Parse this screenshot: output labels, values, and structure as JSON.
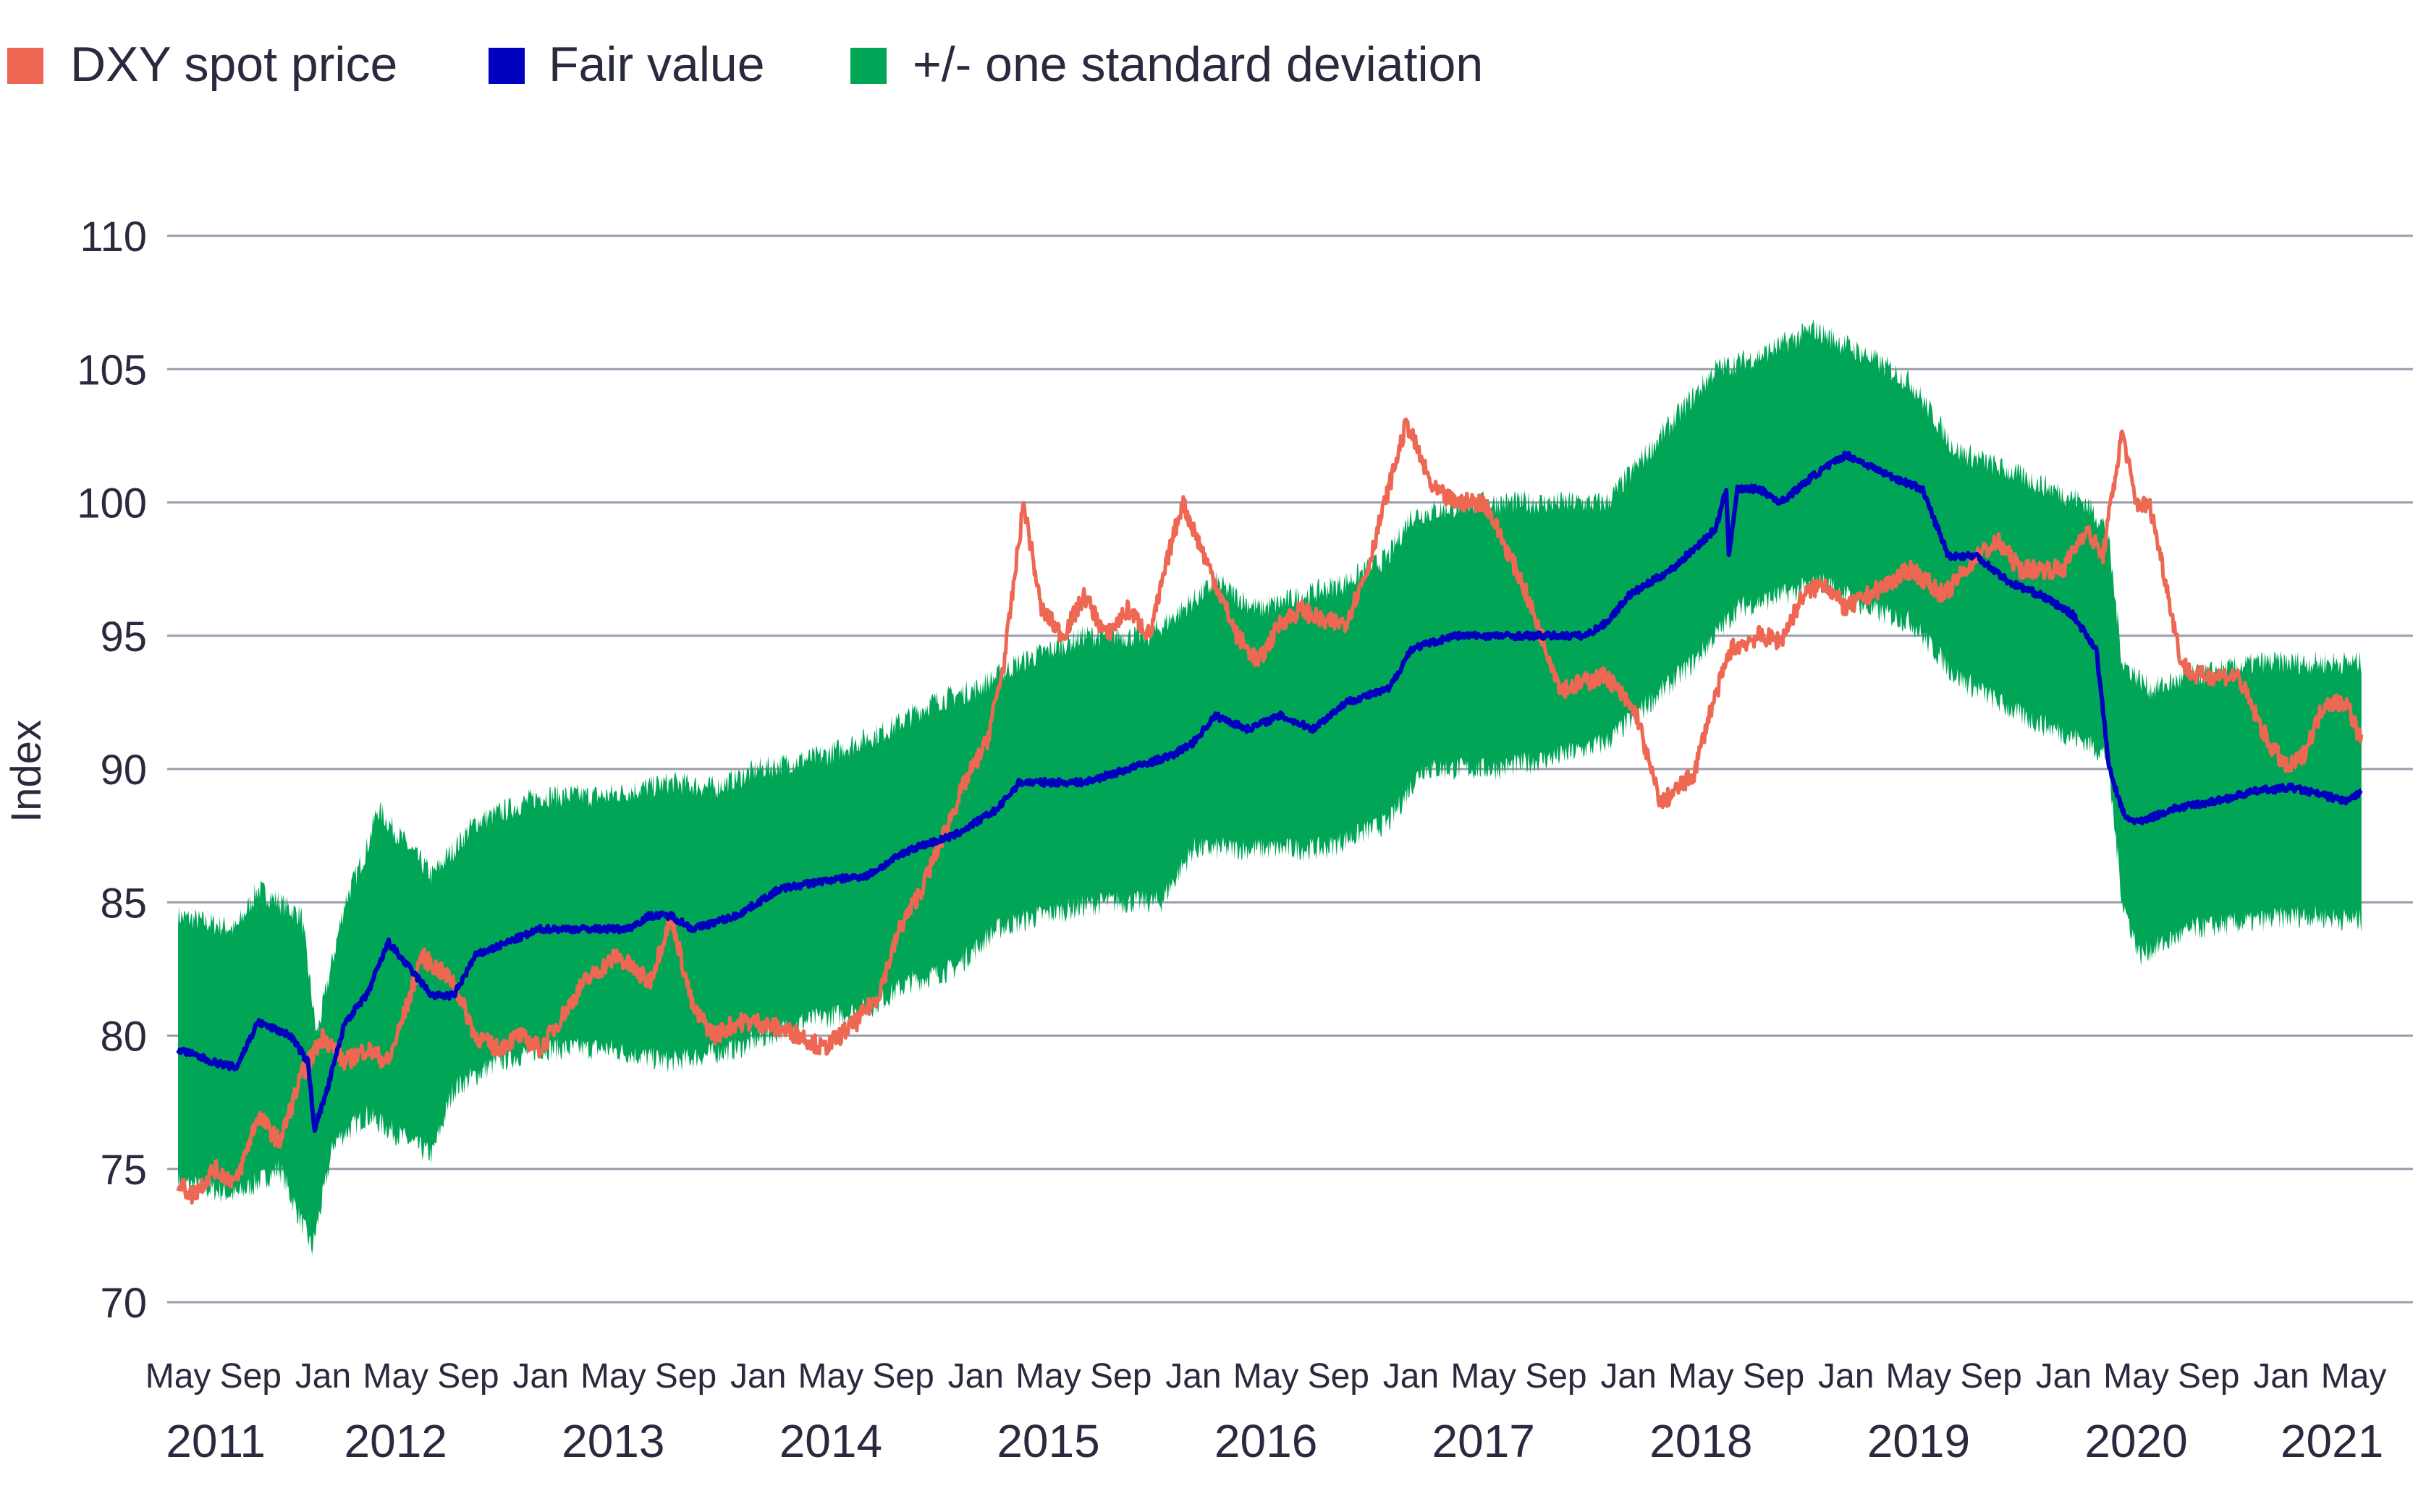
{
  "chart_data": {
    "type": "line",
    "title": "",
    "xlabel": "",
    "ylabel": "Index",
    "ylim": [
      70,
      110
    ],
    "yticks": [
      "70",
      "75",
      "80",
      "85",
      "90",
      "95",
      "100",
      "105",
      "110"
    ],
    "ytick_values": [
      70,
      75,
      80,
      85,
      90,
      95,
      100,
      105,
      110
    ],
    "xlim": [
      2011.33,
      2021.5
    ],
    "grid": "horizontal",
    "legend_position": "top-left",
    "x_month_labels": [
      "May",
      "Sep",
      "Jan",
      "May",
      "Sep",
      "Jan",
      "May",
      "Sep",
      "Jan",
      "May",
      "Sep",
      "Jan",
      "May",
      "Sep",
      "Jan",
      "May",
      "Sep",
      "Jan",
      "May",
      "Sep",
      "Jan",
      "May",
      "Sep",
      "Jan",
      "May",
      "Sep",
      "Jan",
      "May",
      "Sep",
      "Jan",
      "May"
    ],
    "x_year_labels": [
      "2011",
      "2012",
      "2013",
      "2014",
      "2015",
      "2016",
      "2017",
      "2018",
      "2019",
      "2020",
      "2021"
    ],
    "legend": [
      {
        "label": "DXY spot price",
        "color": "#ee6752"
      },
      {
        "label": "Fair value",
        "color": "#0000bf"
      },
      {
        "label": "+/- one standard deviation",
        "color": "#00a656"
      }
    ],
    "series": [
      {
        "name": "DXY spot price",
        "color": "#ee6752",
        "x": [
          2011.33,
          2011.4,
          2011.5,
          2011.6,
          2011.7,
          2011.8,
          2011.9,
          2012.0,
          2012.1,
          2012.2,
          2012.3,
          2012.4,
          2012.45,
          2012.6,
          2012.7,
          2012.8,
          2012.9,
          2013.0,
          2013.2,
          2013.35,
          2013.5,
          2013.6,
          2013.7,
          2013.8,
          2013.9,
          2014.0,
          2014.2,
          2014.3,
          2014.45,
          2014.55,
          2014.65,
          2014.75,
          2014.85,
          2014.95,
          2015.05,
          2015.13,
          2015.22,
          2015.3,
          2015.4,
          2015.5,
          2015.6,
          2015.7,
          2015.8,
          2015.9,
          2015.95,
          2016.1,
          2016.2,
          2016.3,
          2016.4,
          2016.5,
          2016.6,
          2016.7,
          2016.8,
          2016.88,
          2016.98,
          2017.1,
          2017.2,
          2017.34,
          2017.51,
          2017.69,
          2017.9,
          2018.04,
          2018.1,
          2018.15,
          2018.3,
          2018.37,
          2018.47,
          2018.6,
          2018.7,
          2018.8,
          2018.9,
          2019.0,
          2019.1,
          2019.2,
          2019.3,
          2019.45,
          2019.6,
          2019.7,
          2019.8,
          2019.9,
          2020.0,
          2020.1,
          2020.18,
          2020.27,
          2020.33,
          2020.4,
          2020.47,
          2020.54,
          2020.6,
          2020.8,
          2020.94,
          2021.03,
          2021.1,
          2021.2,
          2021.3,
          2021.37
        ],
        "values": [
          74.5,
          74,
          75,
          74.5,
          77,
          76,
          78.5,
          80,
          79,
          79.5,
          79,
          81.5,
          83,
          82,
          80,
          79.5,
          80,
          79.5,
          82,
          83,
          82,
          84.5,
          81,
          80,
          80.5,
          80.5,
          80,
          79.5,
          80.5,
          81.5,
          84,
          85.5,
          87.5,
          89.5,
          91,
          94,
          100,
          96,
          95,
          96.5,
          95,
          96,
          95,
          98.5,
          100,
          97,
          95,
          94,
          95.5,
          96,
          95.5,
          95.5,
          97.5,
          100,
          103,
          100.5,
          100,
          100,
          97,
          93,
          93.5,
          92,
          90,
          88.7,
          89.8,
          92,
          94.5,
          95,
          94.8,
          96.5,
          97,
          96,
          96.5,
          97,
          97.5,
          96.5,
          98,
          98.5,
          97.5,
          97.5,
          97.5,
          99,
          98,
          102.7,
          100,
          99.8,
          97,
          94,
          93.5,
          93.5,
          91,
          90,
          90.5,
          92.5,
          92.5,
          91
        ]
      },
      {
        "name": "Fair value",
        "color": "#0000bf",
        "x": [
          2011.33,
          2011.5,
          2011.6,
          2011.7,
          2011.85,
          2011.93,
          2011.96,
          2012.02,
          2012.1,
          2012.2,
          2012.3,
          2012.4,
          2012.5,
          2012.6,
          2012.7,
          2012.85,
          2013.0,
          2013.2,
          2013.4,
          2013.5,
          2013.6,
          2013.7,
          2013.9,
          2014.1,
          2014.3,
          2014.5,
          2014.7,
          2014.9,
          2015.0,
          2015.1,
          2015.2,
          2015.5,
          2015.7,
          2015.9,
          2016.0,
          2016.1,
          2016.25,
          2016.4,
          2016.55,
          2016.7,
          2016.9,
          2017.0,
          2017.2,
          2017.4,
          2017.6,
          2017.8,
          2017.9,
          2018.0,
          2018.2,
          2018.4,
          2018.45,
          2018.46,
          2018.5,
          2018.6,
          2018.7,
          2018.85,
          2019.0,
          2019.2,
          2019.35,
          2019.47,
          2019.6,
          2019.75,
          2019.9,
          2020.04,
          2020.15,
          2020.21,
          2020.28,
          2020.35,
          2020.5,
          2020.7,
          2020.9,
          2021.05,
          2021.2,
          2021.3,
          2021.37
        ],
        "values": [
          79.5,
          79,
          78.8,
          80.5,
          80,
          79,
          76.5,
          78,
          80.5,
          81.5,
          83.5,
          82.5,
          81.5,
          81.5,
          83,
          83.5,
          84,
          84,
          84,
          84.5,
          84.5,
          84,
          84.5,
          85.5,
          85.8,
          86,
          87,
          87.5,
          88,
          88.5,
          89.5,
          89.5,
          90,
          90.5,
          91,
          92,
          91.5,
          92,
          91.5,
          92.5,
          93,
          94.5,
          95,
          95,
          95,
          95,
          95.5,
          96.5,
          97.5,
          99,
          100.5,
          98,
          100.5,
          100.5,
          100,
          101,
          101.8,
          101,
          100.5,
          98,
          98,
          97,
          96.5,
          95.8,
          94.5,
          90,
          88.2,
          88,
          88.5,
          88.8,
          89.2,
          89.3,
          89,
          88.8,
          89.1
        ]
      }
    ],
    "band": {
      "name": "+/- one standard deviation",
      "color": "#00a656",
      "upper": {
        "x": [
          2011.33,
          2011.6,
          2011.7,
          2011.9,
          2011.97,
          2012.1,
          2012.2,
          2012.25,
          2012.4,
          2012.5,
          2012.6,
          2012.7,
          2013.0,
          2013.3,
          2013.6,
          2013.8,
          2014.0,
          2014.3,
          2014.6,
          2014.8,
          2015.0,
          2015.2,
          2015.5,
          2015.8,
          2015.95,
          2016.1,
          2016.3,
          2016.5,
          2016.7,
          2016.9,
          2017.0,
          2017.3,
          2017.6,
          2017.9,
          2018.0,
          2018.2,
          2018.4,
          2018.6,
          2018.85,
          2019.1,
          2019.3,
          2019.5,
          2019.8,
          2020.1,
          2020.2,
          2020.27,
          2020.4,
          2020.6,
          2020.9,
          2021.2,
          2021.37
        ],
        "values": [
          84.5,
          84,
          85.5,
          84.5,
          80,
          85,
          87,
          88.5,
          87,
          86,
          87,
          88,
          89,
          89,
          89.5,
          89.3,
          90,
          90.5,
          91.5,
          92.5,
          93,
          94,
          95,
          95,
          96,
          97,
          96,
          96.5,
          97,
          98,
          99.5,
          100,
          100,
          100,
          101,
          103,
          105,
          105.5,
          106.5,
          105.5,
          104.5,
          102,
          101,
          100,
          99,
          94,
          93,
          93.5,
          94,
          94,
          94
        ]
      },
      "lower": {
        "x": [
          2011.33,
          2011.6,
          2011.8,
          2011.95,
          2012.05,
          2012.2,
          2012.4,
          2012.5,
          2012.6,
          2012.8,
          2013.0,
          2013.3,
          2013.6,
          2013.9,
          2014.2,
          2014.5,
          2014.7,
          2014.9,
          2015.1,
          2015.3,
          2015.6,
          2015.85,
          2016.0,
          2016.3,
          2016.6,
          2016.9,
          2017.05,
          2017.4,
          2017.7,
          2017.9,
          2018.1,
          2018.3,
          2018.5,
          2018.7,
          2018.9,
          2019.1,
          2019.3,
          2019.5,
          2019.8,
          2020.1,
          2020.2,
          2020.27,
          2020.35,
          2020.6,
          2020.9,
          2021.1,
          2021.37
        ],
        "values": [
          74.5,
          74,
          75,
          72,
          76,
          77,
          76,
          75.5,
          78,
          79,
          79.5,
          79.5,
          79,
          79.5,
          80.5,
          81,
          82,
          82.5,
          84,
          84.5,
          85,
          85,
          87,
          87,
          87,
          88,
          90,
          90,
          90.5,
          91,
          92.5,
          94,
          96,
          96.5,
          97,
          96,
          95.5,
          93.5,
          92,
          91,
          90.5,
          85,
          83,
          84,
          84.3,
          84.5,
          84.3
        ]
      }
    }
  }
}
